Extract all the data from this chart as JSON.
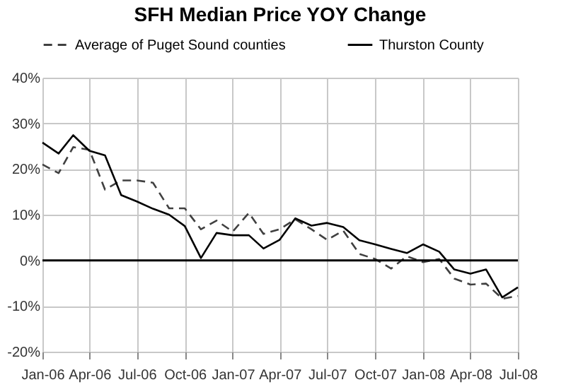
{
  "chart_data": {
    "type": "line",
    "title": "SFH Median Price YOY Change",
    "x": [
      "2006-01",
      "2006-02",
      "2006-03",
      "2006-04",
      "2006-05",
      "2006-06",
      "2006-07",
      "2006-08",
      "2006-09",
      "2006-10",
      "2006-11",
      "2006-12",
      "2007-01",
      "2007-02",
      "2007-03",
      "2007-04",
      "2007-05",
      "2007-06",
      "2007-07",
      "2007-08",
      "2007-09",
      "2007-10",
      "2007-11",
      "2007-12",
      "2008-01",
      "2008-02",
      "2008-03",
      "2008-04",
      "2008-05",
      "2008-06",
      "2008-07"
    ],
    "series": [
      {
        "name": "Average of Puget Sound counties",
        "color": "#404040",
        "line_style": "dashed",
        "values": [
          21,
          19.1,
          24.8,
          24.2,
          15.5,
          17.5,
          17.5,
          17,
          11.4,
          11.4,
          6.8,
          8.7,
          6.3,
          10.4,
          5.8,
          6.8,
          9,
          6.8,
          4.5,
          6.5,
          1.4,
          0.3,
          -1.8,
          0.9,
          -0.4,
          0.3,
          -4,
          -5.3,
          -5.1,
          -8.4,
          -7.8
        ]
      },
      {
        "name": "Thurston County",
        "color": "#000000",
        "line_style": "solid",
        "values": [
          25.8,
          23.4,
          27.4,
          24,
          23,
          14.3,
          12.9,
          11.3,
          10,
          7.5,
          0.5,
          6,
          5.5,
          5.5,
          2.6,
          4.5,
          9.2,
          7.6,
          8.2,
          7.3,
          4.4,
          3.5,
          2.5,
          1.6,
          3.5,
          1.9,
          -2,
          -2.9,
          -2,
          -8.1,
          -5.9
        ]
      }
    ],
    "xlim": [
      "2006-01",
      "2008-07"
    ],
    "xticks": [
      {
        "value": "2006-01",
        "label": "Jan-06"
      },
      {
        "value": "2006-04",
        "label": "Apr-06"
      },
      {
        "value": "2006-07",
        "label": "Jul-06"
      },
      {
        "value": "2006-10",
        "label": "Oct-06"
      },
      {
        "value": "2007-01",
        "label": "Jan-07"
      },
      {
        "value": "2007-04",
        "label": "Apr-07"
      },
      {
        "value": "2007-07",
        "label": "Jul-07"
      },
      {
        "value": "2007-10",
        "label": "Oct-07"
      },
      {
        "value": "2008-01",
        "label": "Jan-08"
      },
      {
        "value": "2008-04",
        "label": "Apr-08"
      },
      {
        "value": "2008-07",
        "label": "Jul-08"
      }
    ],
    "ylim": [
      -20,
      40
    ],
    "yticks": [
      {
        "value": -20,
        "label": "-20%"
      },
      {
        "value": -10,
        "label": "-10%"
      },
      {
        "value": 0,
        "label": "0%"
      },
      {
        "value": 10,
        "label": "10%"
      },
      {
        "value": 20,
        "label": "20%"
      },
      {
        "value": 30,
        "label": "30%"
      },
      {
        "value": 40,
        "label": "40%"
      }
    ],
    "ref_lines": [
      {
        "axis": "y",
        "value": 0,
        "color": "#000000"
      }
    ],
    "grid": true,
    "legend": "top",
    "marker": "none"
  }
}
